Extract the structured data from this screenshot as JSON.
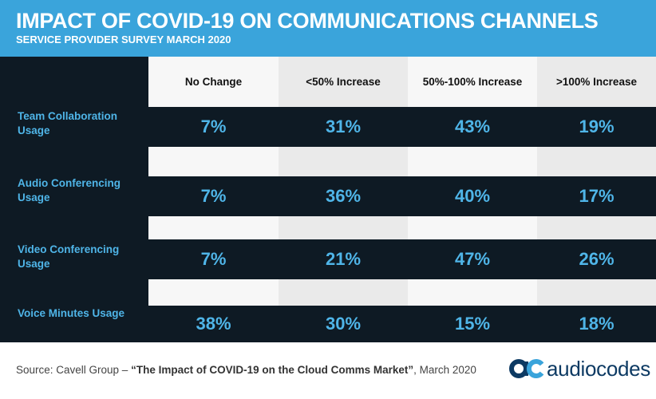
{
  "header": {
    "title": "IMPACT OF COVID-19 ON COMMUNICATIONS CHANNELS",
    "subtitle": "SERVICE PROVIDER SURVEY MARCH 2020"
  },
  "colors": {
    "header_background": "#3aa4db",
    "board_background": "#0e1a24",
    "value_text": "#4fb5e8",
    "column_light": "#f7f7f7",
    "column_dark": "#eaeaea",
    "logo_text": "#0d3a63",
    "logo_mark_a": "#0d3a63",
    "logo_mark_c": "#3aa4db"
  },
  "chart_data": {
    "type": "table",
    "title": "IMPACT OF COVID-19 ON COMMUNICATIONS CHANNELS",
    "subtitle": "SERVICE PROVIDER SURVEY MARCH 2020",
    "columns": [
      "No Change",
      "<50% Increase",
      "50%-100% Increase",
      ">100% Increase"
    ],
    "rows": [
      {
        "label": "Team Collaboration Usage",
        "values": [
          "7%",
          "31%",
          "43%",
          "19%"
        ]
      },
      {
        "label": "Audio Conferencing Usage",
        "values": [
          "7%",
          "36%",
          "40%",
          "17%"
        ]
      },
      {
        "label": "Video Conferencing Usage",
        "values": [
          "7%",
          "21%",
          "47%",
          "26%"
        ]
      },
      {
        "label": "Voice Minutes Usage",
        "values": [
          "38%",
          "30%",
          "15%",
          "18%"
        ]
      }
    ],
    "unit": "%"
  },
  "footer": {
    "source_prefix": "Source: Cavell Group – ",
    "source_title": "“The Impact of COVID-19 on the Cloud Comms Market”",
    "source_suffix": ", March 2020"
  },
  "logo": {
    "text": "audiocodes",
    "icon": "audiocodes-logo-icon"
  }
}
